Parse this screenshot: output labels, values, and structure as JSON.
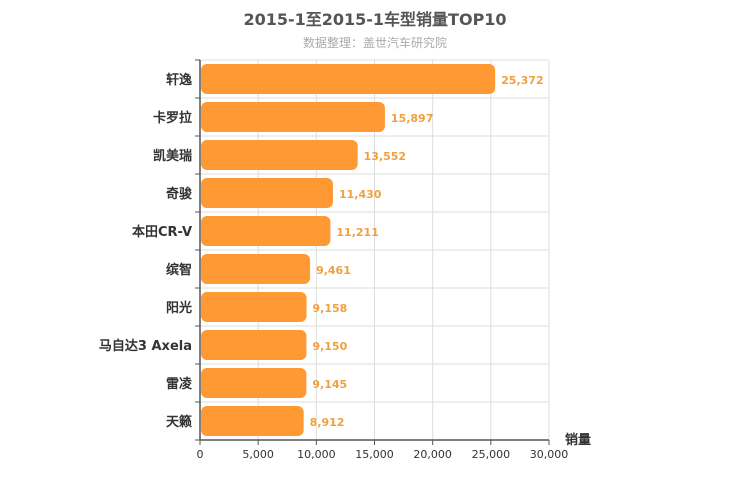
{
  "chart_data": {
    "type": "bar",
    "orientation": "horizontal",
    "title": "2015-1至2015-1车型销量TOP10",
    "subtitle": "数据整理：盖世汽车研究院",
    "categories": [
      "轩逸",
      "卡罗拉",
      "凯美瑞",
      "奇骏",
      "本田CR-V",
      "缤智",
      "阳光",
      "马自达3 Axela",
      "雷凌",
      "天籁"
    ],
    "values": [
      25372,
      15897,
      13552,
      11430,
      11211,
      9461,
      9158,
      9150,
      9145,
      8912
    ],
    "value_labels": [
      "25,372",
      "15,897",
      "13,552",
      "11,430",
      "11,211",
      "9,461",
      "9,158",
      "9,150",
      "9,145",
      "8,912"
    ],
    "xlabel": "销量",
    "ylabel": "",
    "xlim": [
      0,
      30000
    ],
    "ticks": [
      0,
      5000,
      10000,
      15000,
      20000,
      25000,
      30000
    ],
    "tick_labels": [
      "0",
      "5,000",
      "10,000",
      "15,000",
      "20,000",
      "25,000",
      "30,000"
    ],
    "grid": true,
    "bar_color": "#ff9933",
    "value_label_color": "#f0a040"
  }
}
